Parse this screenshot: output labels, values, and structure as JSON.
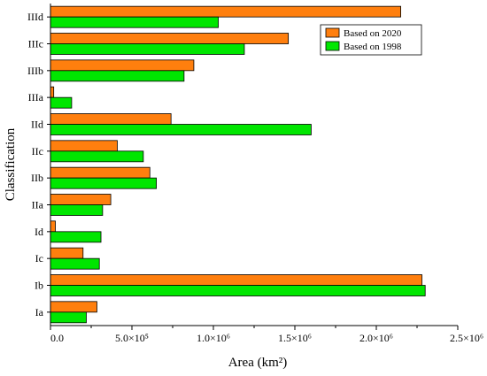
{
  "chart_data": {
    "type": "bar",
    "orientation": "horizontal",
    "categories": [
      "IIId",
      "IIIc",
      "IIIb",
      "IIIa",
      "IId",
      "IIc",
      "IIb",
      "IIa",
      "Id",
      "Ic",
      "Ib",
      "Ia"
    ],
    "series": [
      {
        "name": "Based on 2020",
        "color": "#ff7f0e",
        "values": [
          2150000,
          1460000,
          880000,
          20000,
          740000,
          410000,
          610000,
          370000,
          30000,
          200000,
          2280000,
          285000
        ]
      },
      {
        "name": "Based on 1998",
        "color": "#00e600",
        "values": [
          1030000,
          1190000,
          820000,
          130000,
          1600000,
          570000,
          650000,
          320000,
          310000,
          300000,
          2300000,
          220000
        ]
      }
    ],
    "xlim": [
      0,
      2500000
    ],
    "xticks": [
      {
        "value": 0,
        "label": "0.0"
      },
      {
        "value": 500000,
        "label": "5.0×10⁵"
      },
      {
        "value": 1000000,
        "label": "1.0×10⁶"
      },
      {
        "value": 1500000,
        "label": "1.5×10⁶"
      },
      {
        "value": 2000000,
        "label": "2.0×10⁶"
      },
      {
        "value": 2500000,
        "label": "2.5×10⁶"
      }
    ],
    "xlabel": "Area (km²)",
    "ylabel": "Classification",
    "legend_position": "top-right",
    "grid": false
  }
}
